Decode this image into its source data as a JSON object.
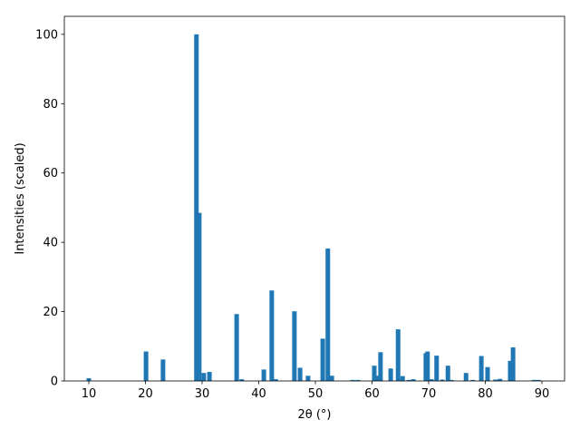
{
  "chart_data": {
    "type": "bar",
    "x_label": "2θ (°)",
    "y_label": "Intensities (scaled)",
    "color": "#1f77b4",
    "x": [
      10.0,
      20.1,
      23.1,
      29.0,
      29.5,
      30.3,
      31.3,
      36.1,
      37.0,
      40.9,
      42.3,
      43.0,
      46.3,
      47.3,
      48.7,
      51.3,
      52.2,
      52.9,
      56.6,
      57.5,
      60.4,
      60.9,
      61.5,
      63.3,
      64.6,
      65.4,
      66.5,
      67.3,
      69.5,
      69.8,
      70.5,
      71.4,
      72.4,
      73.4,
      74.0,
      76.6,
      77.8,
      79.3,
      80.4,
      81.8,
      82.6,
      84.4,
      84.9,
      88.6,
      89.4
    ],
    "values": [
      0.8,
      8.5,
      6.2,
      100,
      48.5,
      2.3,
      2.6,
      19.3,
      0.5,
      3.3,
      26.1,
      0.5,
      20.1,
      3.8,
      1.5,
      12.2,
      38.2,
      1.5,
      0.3,
      0.3,
      4.4,
      1.5,
      8.3,
      3.6,
      14.9,
      1.4,
      0.3,
      0.5,
      8.0,
      8.5,
      0.5,
      7.3,
      0.4,
      4.4,
      0.3,
      2.3,
      0.3,
      7.2,
      4.0,
      0.4,
      0.6,
      5.8,
      9.7,
      0.3,
      0.3
    ],
    "xlim": [
      5.68,
      94.0
    ],
    "ylim": [
      0,
      105.2
    ],
    "xticks": [
      10,
      20,
      30,
      40,
      50,
      60,
      70,
      80,
      90
    ],
    "yticks": [
      0,
      20,
      40,
      60,
      80,
      100
    ],
    "grid": false
  }
}
